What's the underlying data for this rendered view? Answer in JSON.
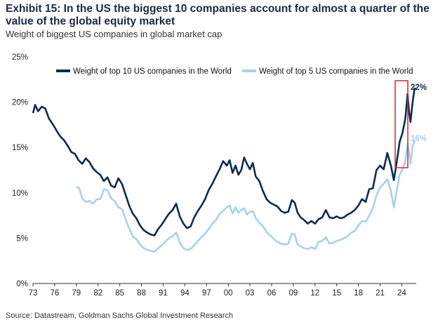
{
  "header": {
    "title": "Exhibit 15: In the US the biggest 10 companies account for almost a quarter of the value of the global equity market",
    "subtitle": "Weight of biggest US companies in global market cap"
  },
  "footer": {
    "source": "Source: Datastream, Goldman Sachs Global Investment Research"
  },
  "colors": {
    "top10": "#0d2b4f",
    "top5": "#a8d1ec",
    "highlight": "#d9232d"
  },
  "chart_data": {
    "type": "line",
    "title": "Weight of biggest US companies in global market cap",
    "xlabel": "",
    "ylabel": "",
    "xlim": [
      1973,
      2026
    ],
    "ylim": [
      0,
      25
    ],
    "x_tick_labels": [
      "73",
      "76",
      "79",
      "82",
      "85",
      "88",
      "91",
      "94",
      "97",
      "00",
      "03",
      "06",
      "09",
      "12",
      "15",
      "18",
      "21",
      "24"
    ],
    "y_tick_labels": [
      "0%",
      "5%",
      "10%",
      "15%",
      "20%",
      "25%"
    ],
    "legend_position": "top",
    "grid": false,
    "series": [
      {
        "name": "Weight of top 10 US companies in the World",
        "color": "#0d2b4f",
        "end_label": "22%",
        "points": [
          [
            1973.0,
            18.8
          ],
          [
            1973.3,
            19.7
          ],
          [
            1973.7,
            19.0
          ],
          [
            1974.2,
            19.5
          ],
          [
            1974.7,
            19.3
          ],
          [
            1975.2,
            18.2
          ],
          [
            1975.8,
            17.5
          ],
          [
            1976.3,
            16.8
          ],
          [
            1976.8,
            16.2
          ],
          [
            1977.3,
            15.8
          ],
          [
            1977.8,
            15.2
          ],
          [
            1978.3,
            14.5
          ],
          [
            1978.8,
            14.3
          ],
          [
            1979.3,
            13.6
          ],
          [
            1979.8,
            13.2
          ],
          [
            1980.3,
            13.8
          ],
          [
            1980.8,
            13.4
          ],
          [
            1981.3,
            12.7
          ],
          [
            1981.8,
            12.3
          ],
          [
            1982.3,
            12.0
          ],
          [
            1982.8,
            11.3
          ],
          [
            1983.3,
            11.7
          ],
          [
            1983.8,
            10.8
          ],
          [
            1984.3,
            10.6
          ],
          [
            1984.8,
            11.6
          ],
          [
            1985.3,
            11.0
          ],
          [
            1985.8,
            9.8
          ],
          [
            1986.3,
            8.6
          ],
          [
            1986.8,
            7.7
          ],
          [
            1987.3,
            7.2
          ],
          [
            1987.8,
            6.4
          ],
          [
            1988.3,
            5.9
          ],
          [
            1988.8,
            5.6
          ],
          [
            1989.3,
            5.4
          ],
          [
            1989.8,
            5.3
          ],
          [
            1990.3,
            6.0
          ],
          [
            1990.8,
            6.5
          ],
          [
            1991.3,
            7.1
          ],
          [
            1991.8,
            7.7
          ],
          [
            1992.3,
            8.1
          ],
          [
            1992.8,
            8.8
          ],
          [
            1993.3,
            7.4
          ],
          [
            1993.8,
            6.6
          ],
          [
            1994.3,
            6.1
          ],
          [
            1994.8,
            6.3
          ],
          [
            1995.3,
            7.3
          ],
          [
            1995.8,
            8.0
          ],
          [
            1996.3,
            8.6
          ],
          [
            1996.8,
            9.3
          ],
          [
            1997.3,
            10.3
          ],
          [
            1997.8,
            11.0
          ],
          [
            1998.3,
            11.8
          ],
          [
            1998.8,
            12.6
          ],
          [
            1999.3,
            13.5
          ],
          [
            1999.8,
            13.0
          ],
          [
            2000.2,
            13.6
          ],
          [
            2000.6,
            12.2
          ],
          [
            2001.0,
            13.0
          ],
          [
            2001.4,
            12.0
          ],
          [
            2001.8,
            12.5
          ],
          [
            2002.2,
            13.9
          ],
          [
            2002.6,
            13.2
          ],
          [
            2003.0,
            12.6
          ],
          [
            2003.4,
            13.3
          ],
          [
            2003.8,
            11.8
          ],
          [
            2004.3,
            11.3
          ],
          [
            2004.8,
            10.2
          ],
          [
            2005.3,
            9.3
          ],
          [
            2005.8,
            8.9
          ],
          [
            2006.3,
            8.7
          ],
          [
            2006.8,
            8.5
          ],
          [
            2007.3,
            8.0
          ],
          [
            2007.8,
            7.8
          ],
          [
            2008.3,
            7.9
          ],
          [
            2008.8,
            9.2
          ],
          [
            2009.2,
            8.9
          ],
          [
            2009.6,
            7.8
          ],
          [
            2010.0,
            7.3
          ],
          [
            2010.5,
            7.0
          ],
          [
            2011.0,
            6.6
          ],
          [
            2011.5,
            6.9
          ],
          [
            2012.0,
            6.6
          ],
          [
            2012.5,
            7.1
          ],
          [
            2013.0,
            7.3
          ],
          [
            2013.5,
            8.1
          ],
          [
            2014.0,
            7.3
          ],
          [
            2014.5,
            7.2
          ],
          [
            2015.0,
            7.4
          ],
          [
            2015.5,
            7.2
          ],
          [
            2016.0,
            7.3
          ],
          [
            2016.5,
            7.6
          ],
          [
            2017.0,
            7.8
          ],
          [
            2017.5,
            8.1
          ],
          [
            2018.0,
            8.6
          ],
          [
            2018.5,
            9.3
          ],
          [
            2019.0,
            9.0
          ],
          [
            2019.5,
            10.4
          ],
          [
            2020.0,
            10.5
          ],
          [
            2020.5,
            12.5
          ],
          [
            2021.0,
            13.0
          ],
          [
            2021.5,
            12.6
          ],
          [
            2022.0,
            14.4
          ],
          [
            2022.5,
            13.0
          ],
          [
            2022.9,
            11.4
          ],
          [
            2023.3,
            13.4
          ],
          [
            2023.7,
            15.6
          ],
          [
            2024.1,
            16.6
          ],
          [
            2024.5,
            18.2
          ],
          [
            2024.8,
            20.9
          ],
          [
            2025.0,
            19.0
          ],
          [
            2025.2,
            17.8
          ],
          [
            2025.5,
            20.0
          ],
          [
            2025.8,
            21.6
          ]
        ]
      },
      {
        "name": "Weight of top 5 US companies in the World",
        "color": "#a8d1ec",
        "end_label": "16%",
        "points": [
          [
            1979.0,
            10.7
          ],
          [
            1979.4,
            10.5
          ],
          [
            1979.8,
            9.4
          ],
          [
            1980.3,
            9.0
          ],
          [
            1980.8,
            9.1
          ],
          [
            1981.3,
            8.8
          ],
          [
            1981.8,
            9.3
          ],
          [
            1982.3,
            9.3
          ],
          [
            1982.8,
            10.4
          ],
          [
            1983.3,
            10.3
          ],
          [
            1983.8,
            9.4
          ],
          [
            1984.3,
            9.1
          ],
          [
            1984.8,
            8.4
          ],
          [
            1985.3,
            8.2
          ],
          [
            1985.8,
            7.1
          ],
          [
            1986.3,
            6.1
          ],
          [
            1986.8,
            5.2
          ],
          [
            1987.3,
            4.9
          ],
          [
            1987.8,
            4.3
          ],
          [
            1988.3,
            3.9
          ],
          [
            1988.8,
            3.7
          ],
          [
            1989.3,
            3.6
          ],
          [
            1989.8,
            3.5
          ],
          [
            1990.3,
            3.9
          ],
          [
            1990.8,
            4.2
          ],
          [
            1991.3,
            4.6
          ],
          [
            1991.8,
            5.0
          ],
          [
            1992.3,
            5.2
          ],
          [
            1992.8,
            5.6
          ],
          [
            1993.3,
            4.5
          ],
          [
            1993.8,
            3.9
          ],
          [
            1994.3,
            3.7
          ],
          [
            1994.8,
            3.8
          ],
          [
            1995.3,
            4.2
          ],
          [
            1995.8,
            4.7
          ],
          [
            1996.3,
            5.1
          ],
          [
            1996.8,
            5.5
          ],
          [
            1997.3,
            6.0
          ],
          [
            1997.8,
            6.6
          ],
          [
            1998.3,
            7.0
          ],
          [
            1998.8,
            7.7
          ],
          [
            1999.3,
            8.0
          ],
          [
            1999.8,
            8.4
          ],
          [
            2000.2,
            8.6
          ],
          [
            2000.6,
            7.7
          ],
          [
            2001.0,
            8.4
          ],
          [
            2001.4,
            7.8
          ],
          [
            2001.8,
            8.1
          ],
          [
            2002.2,
            8.3
          ],
          [
            2002.6,
            7.6
          ],
          [
            2003.0,
            7.9
          ],
          [
            2003.4,
            8.0
          ],
          [
            2003.8,
            7.2
          ],
          [
            2004.3,
            6.7
          ],
          [
            2004.8,
            6.3
          ],
          [
            2005.3,
            5.7
          ],
          [
            2005.8,
            5.3
          ],
          [
            2006.3,
            4.9
          ],
          [
            2006.8,
            4.6
          ],
          [
            2007.3,
            4.4
          ],
          [
            2007.8,
            4.3
          ],
          [
            2008.3,
            4.4
          ],
          [
            2008.8,
            5.5
          ],
          [
            2009.2,
            5.4
          ],
          [
            2009.6,
            4.3
          ],
          [
            2010.0,
            4.1
          ],
          [
            2010.5,
            3.9
          ],
          [
            2011.0,
            3.8
          ],
          [
            2011.5,
            4.0
          ],
          [
            2012.0,
            3.8
          ],
          [
            2012.5,
            4.6
          ],
          [
            2013.0,
            4.7
          ],
          [
            2013.5,
            5.1
          ],
          [
            2014.0,
            4.4
          ],
          [
            2014.5,
            4.5
          ],
          [
            2015.0,
            4.7
          ],
          [
            2015.5,
            4.8
          ],
          [
            2016.0,
            5.0
          ],
          [
            2016.5,
            5.2
          ],
          [
            2017.0,
            5.6
          ],
          [
            2017.5,
            5.8
          ],
          [
            2018.0,
            6.4
          ],
          [
            2018.5,
            6.9
          ],
          [
            2019.0,
            6.8
          ],
          [
            2019.5,
            7.5
          ],
          [
            2020.0,
            8.3
          ],
          [
            2020.5,
            9.7
          ],
          [
            2021.0,
            10.6
          ],
          [
            2021.5,
            11.0
          ],
          [
            2022.0,
            11.5
          ],
          [
            2022.5,
            10.2
          ],
          [
            2022.9,
            8.4
          ],
          [
            2023.3,
            10.2
          ],
          [
            2023.7,
            12.0
          ],
          [
            2024.1,
            12.6
          ],
          [
            2024.5,
            13.5
          ],
          [
            2024.8,
            15.4
          ],
          [
            2025.0,
            14.5
          ],
          [
            2025.2,
            13.2
          ],
          [
            2025.5,
            15.2
          ],
          [
            2025.8,
            15.8
          ]
        ]
      }
    ]
  }
}
